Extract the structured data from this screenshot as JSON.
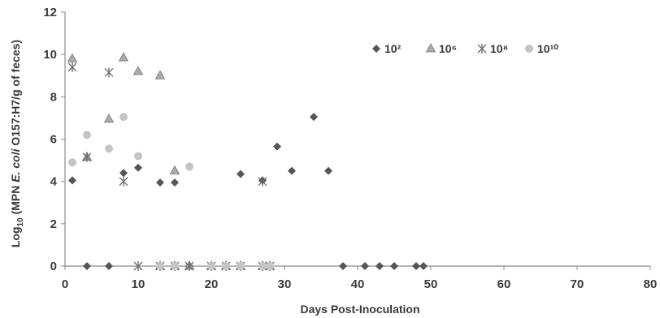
{
  "chart_data": {
    "type": "scatter",
    "title": "",
    "xlabel": "Days Post-Inoculation",
    "ylabel_parts": [
      "Log",
      "10",
      " (MPN ",
      "E. coli",
      " O157:H7/g of feces)"
    ],
    "xlim": [
      0,
      80
    ],
    "ylim": [
      0,
      12
    ],
    "xticks": [
      0,
      10,
      20,
      30,
      40,
      50,
      60,
      70,
      80
    ],
    "yticks": [
      0,
      2,
      4,
      6,
      8,
      10,
      12
    ],
    "grid": false,
    "legend_position": "top-right",
    "series": [
      {
        "name": "10²",
        "marker": "diamond",
        "color": "#555555",
        "points": [
          [
            1,
            4.05
          ],
          [
            3,
            0
          ],
          [
            6,
            0
          ],
          [
            8,
            4.4
          ],
          [
            10,
            4.65
          ],
          [
            13,
            3.95
          ],
          [
            15,
            3.95
          ],
          [
            17,
            0
          ],
          [
            24,
            4.35
          ],
          [
            27,
            4.05
          ],
          [
            29,
            5.65
          ],
          [
            31,
            4.5
          ],
          [
            34,
            7.05
          ],
          [
            36,
            4.5
          ],
          [
            38,
            0
          ],
          [
            41,
            0
          ],
          [
            43,
            0
          ],
          [
            45,
            0
          ],
          [
            48,
            0
          ],
          [
            49,
            0
          ]
        ]
      },
      {
        "name": "10⁶",
        "marker": "triangle",
        "color": "#aaaaaa",
        "points": [
          [
            1,
            9.8
          ],
          [
            3,
            5.15
          ],
          [
            6,
            6.95
          ],
          [
            8,
            9.85
          ],
          [
            10,
            9.2
          ],
          [
            13,
            9.0
          ],
          [
            15,
            4.5
          ],
          [
            13,
            0
          ],
          [
            15,
            0
          ],
          [
            17,
            0
          ],
          [
            20,
            0
          ],
          [
            22,
            0
          ],
          [
            24,
            0
          ],
          [
            27,
            0
          ],
          [
            28,
            0
          ]
        ]
      },
      {
        "name": "10⁸",
        "marker": "asterisk",
        "color": "#6a6a6a",
        "points": [
          [
            1,
            9.4
          ],
          [
            3,
            5.15
          ],
          [
            6,
            9.15
          ],
          [
            8,
            4.0
          ],
          [
            10,
            0
          ],
          [
            13,
            0
          ],
          [
            15,
            0
          ],
          [
            17,
            0
          ],
          [
            20,
            0
          ],
          [
            22,
            0
          ],
          [
            24,
            0
          ],
          [
            27,
            4.0
          ],
          [
            27,
            0
          ],
          [
            28,
            0
          ]
        ]
      },
      {
        "name": "10¹⁰",
        "marker": "circle",
        "color": "#c4c4c4",
        "points": [
          [
            1,
            4.9
          ],
          [
            3,
            6.2
          ],
          [
            6,
            5.55
          ],
          [
            8,
            7.05
          ],
          [
            10,
            5.2
          ],
          [
            17,
            4.7
          ],
          [
            13,
            0
          ],
          [
            15,
            0
          ],
          [
            20,
            0
          ],
          [
            22,
            0
          ],
          [
            24,
            0
          ],
          [
            27,
            0
          ],
          [
            28,
            0
          ]
        ]
      }
    ]
  }
}
